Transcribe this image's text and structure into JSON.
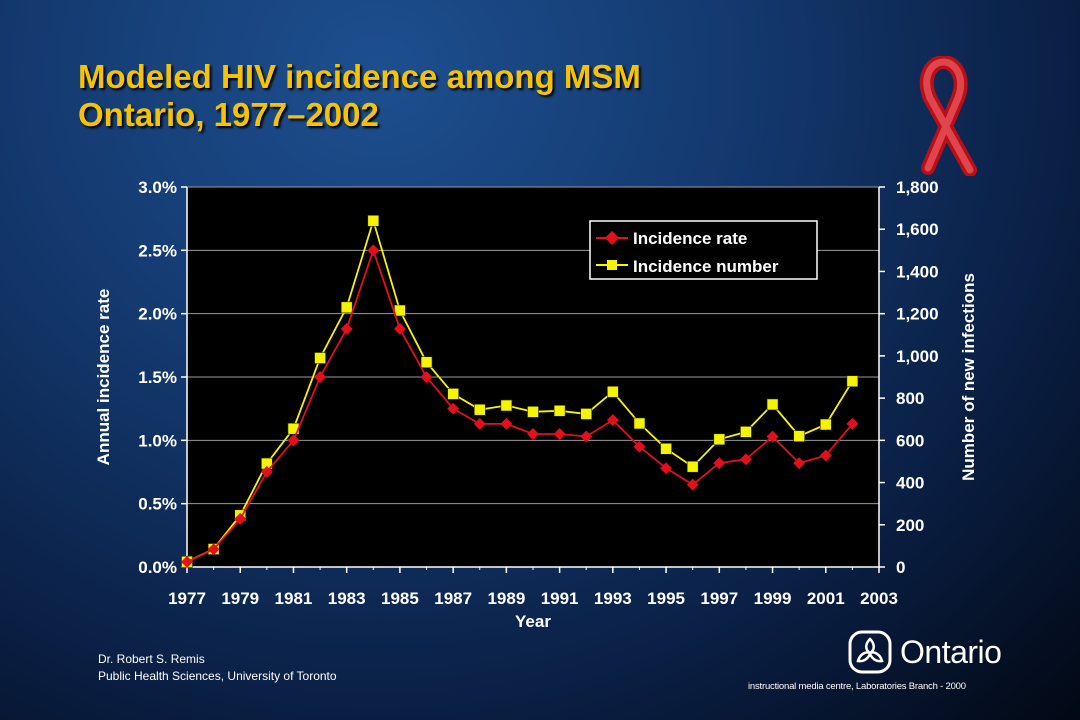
{
  "slide": {
    "title_line1": "Modeled HIV incidence among MSM",
    "title_line2": "Ontario, 1977–2002",
    "author": "Dr. Robert S. Remis",
    "affiliation": "Public Health Sciences, University of Toronto",
    "footer_note": "instructional media centre, Laboratories Branch - 2000",
    "logo_text": "Ontario",
    "ribbon_icon": "red-aids-ribbon-icon",
    "logo_icon": "ontario-trillium-logo-icon"
  },
  "chart_data": {
    "type": "line",
    "title": "",
    "xlabel": "Year",
    "ylabel": "Annual incidence rate",
    "y2label": "Number of new infections",
    "xlim": [
      1977,
      2003
    ],
    "ylim": [
      0,
      0.03
    ],
    "y2lim": [
      0,
      1800
    ],
    "x_ticks": [
      "1977",
      "1979",
      "1981",
      "1983",
      "1985",
      "1987",
      "1989",
      "1991",
      "1993",
      "1995",
      "1997",
      "1999",
      "2001",
      "2003"
    ],
    "y_ticks": [
      "0.0%",
      "0.5%",
      "1.0%",
      "1.5%",
      "2.0%",
      "2.5%",
      "3.0%"
    ],
    "y2_ticks": [
      "0",
      "200",
      "400",
      "600",
      "800",
      "1,000",
      "1,200",
      "1,400",
      "1,600",
      "1,800"
    ],
    "legend_position": "top-right",
    "grid": "horizontal",
    "colors": {
      "plot_background": "#000000",
      "grid": "#9a9a9a",
      "axis": "#ffffff",
      "text": "#ffffff",
      "title": "#f5c400"
    },
    "x": [
      1977,
      1978,
      1979,
      1980,
      1981,
      1982,
      1983,
      1984,
      1985,
      1986,
      1987,
      1988,
      1989,
      1990,
      1991,
      1992,
      1993,
      1994,
      1995,
      1996,
      1997,
      1998,
      1999,
      2000,
      2001,
      2002
    ],
    "series": [
      {
        "name": "Incidence rate",
        "axis": "left",
        "color": "#e2101e",
        "marker": "diamond",
        "values": [
          0.0004,
          0.0014,
          0.0038,
          0.0075,
          0.01,
          0.015,
          0.0188,
          0.025,
          0.0188,
          0.015,
          0.0125,
          0.0113,
          0.0113,
          0.0105,
          0.0105,
          0.0103,
          0.0116,
          0.0095,
          0.0078,
          0.0065,
          0.0082,
          0.0085,
          0.0103,
          0.0082,
          0.0088,
          0.0113
        ]
      },
      {
        "name": "Incidence number",
        "axis": "right",
        "color": "#f5f500",
        "marker": "square",
        "values": [
          25,
          85,
          245,
          490,
          655,
          990,
          1230,
          1640,
          1215,
          970,
          820,
          745,
          765,
          735,
          740,
          725,
          830,
          680,
          560,
          475,
          605,
          640,
          770,
          620,
          675,
          880
        ]
      }
    ]
  }
}
